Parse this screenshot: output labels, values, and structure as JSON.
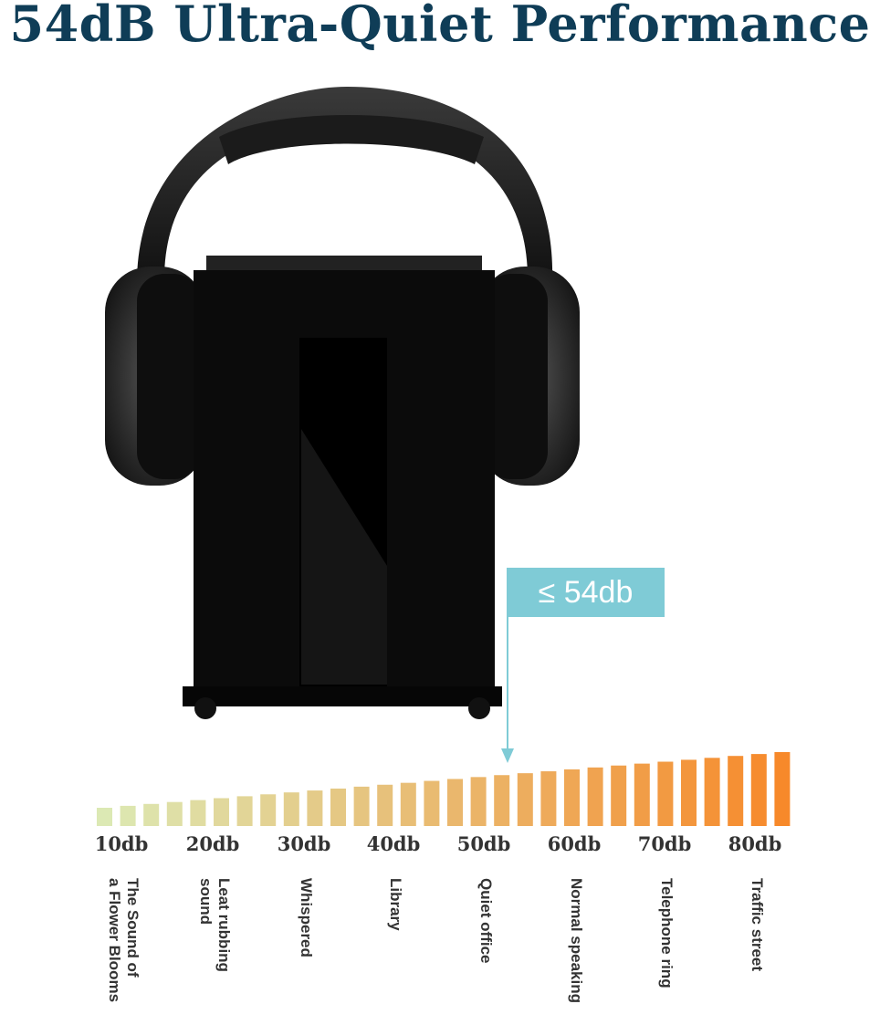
{
  "title": "54dB Ultra-Quiet Performance",
  "callout": {
    "label": "≤ 54db",
    "color": "#7fcbd6",
    "value_db": 54
  },
  "colors": {
    "title": "#0f3d57",
    "bar_start": "#dce9b4",
    "bar_end": "#f7892a"
  },
  "scale": {
    "ticks": [
      "10db",
      "20db",
      "30db",
      "40db",
      "50db",
      "60db",
      "70db",
      "80db"
    ],
    "descriptions": [
      [
        "The Sound of",
        "a Flower Blooms"
      ],
      [
        "Leat rubbing",
        "sound"
      ],
      [
        "Whispered"
      ],
      [
        "Library"
      ],
      [
        "Quiet office"
      ],
      [
        "Normal speaking"
      ],
      [
        "Telephone ring"
      ],
      [
        "Traffic street"
      ]
    ]
  }
}
